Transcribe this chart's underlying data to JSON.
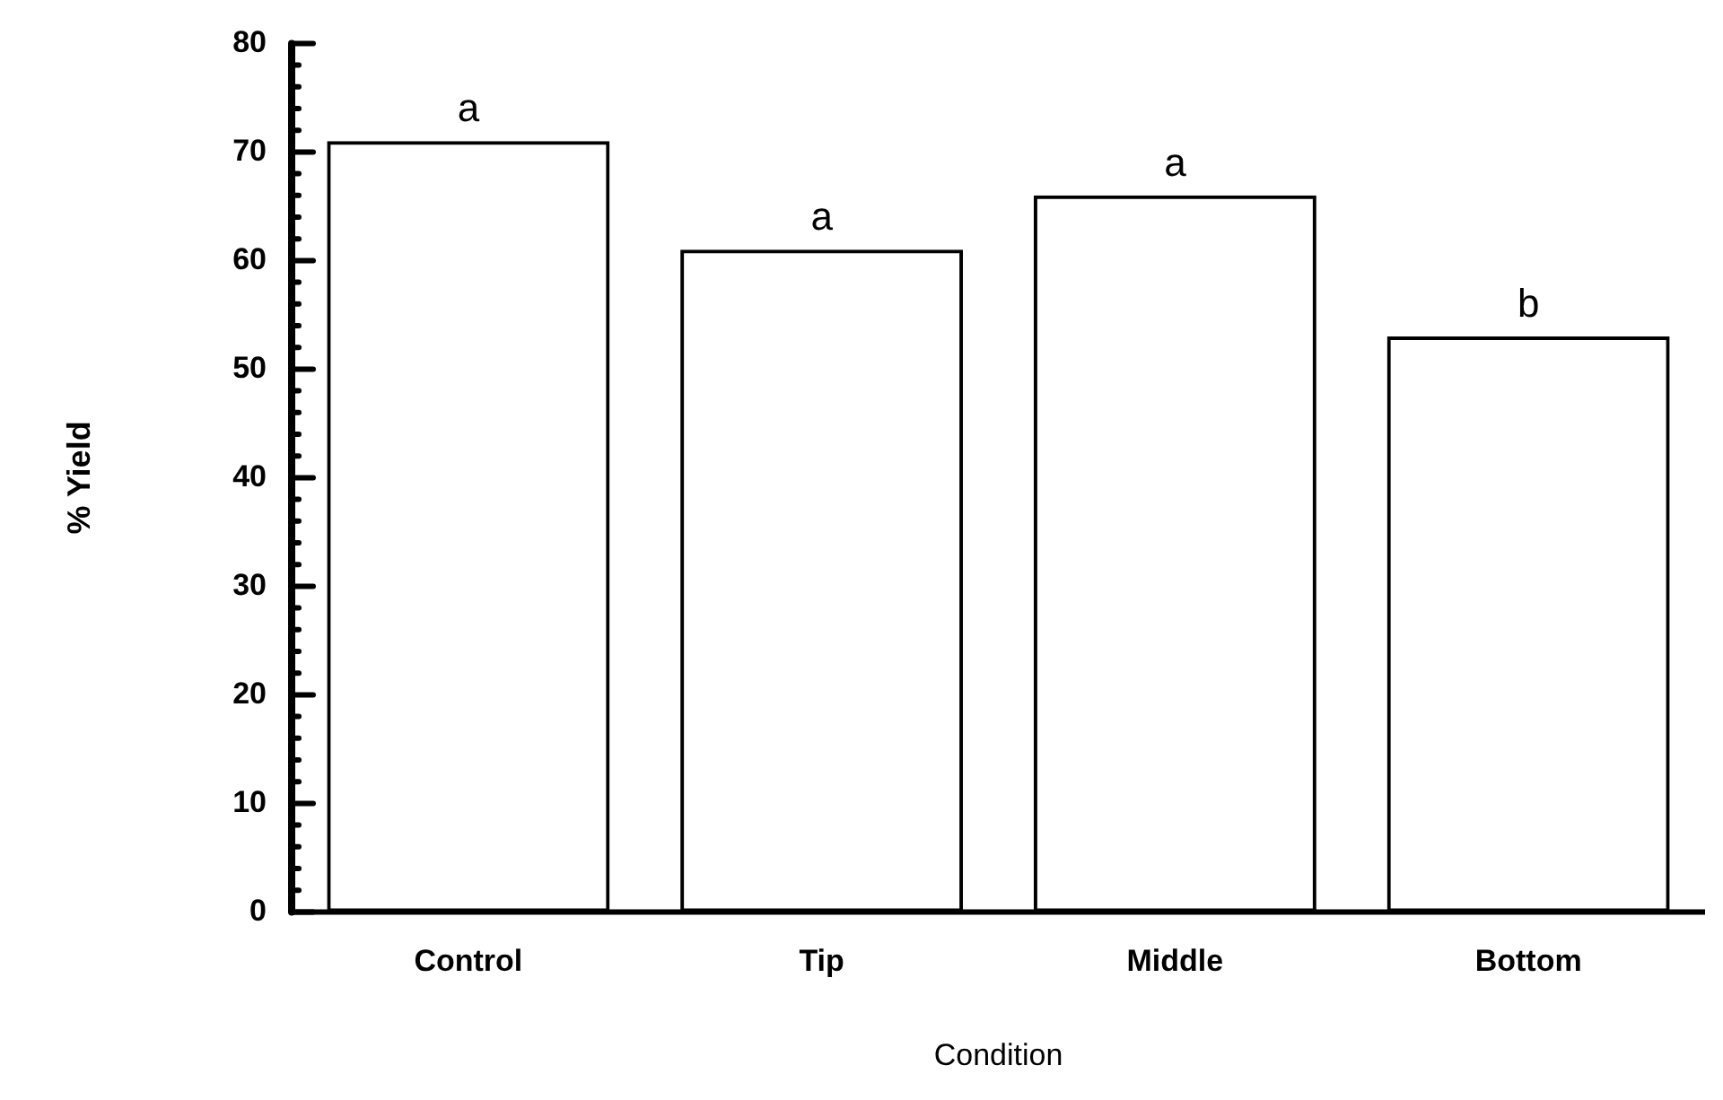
{
  "chart_data": {
    "type": "bar",
    "xlabel": "Condition",
    "ylabel": "% Yield",
    "categories": [
      "Control",
      "Tip",
      "Middle",
      "Bottom"
    ],
    "values": [
      71,
      61,
      66,
      53
    ],
    "color": "#000000",
    "ylim": [
      0,
      80
    ],
    "yticks": [
      0,
      {
        "value": 2,
        "label": null
      },
      {
        "value": 4,
        "label": null
      },
      {
        "value": 6,
        "label": null
      },
      {
        "value": 8,
        "label": null
      },
      10,
      {
        "value": 12,
        "label": null
      },
      {
        "value": 14,
        "label": null
      },
      {
        "value": 16,
        "label": null
      },
      {
        "value": 18,
        "label": null
      },
      20,
      {
        "value": 22,
        "label": null
      },
      {
        "value": 24,
        "label": null
      },
      {
        "value": 26,
        "label": null
      },
      {
        "value": 28,
        "label": null
      },
      30,
      {
        "value": 32,
        "label": null
      },
      {
        "value": 34,
        "label": null
      },
      {
        "value": 36,
        "label": null
      },
      {
        "value": 38,
        "label": null
      },
      40,
      {
        "value": 42,
        "label": null
      },
      {
        "value": 44,
        "label": null
      },
      {
        "value": 46,
        "label": null
      },
      {
        "value": 48,
        "label": null
      },
      50,
      {
        "value": 52,
        "label": null
      },
      {
        "value": 54,
        "label": null
      },
      {
        "value": 56,
        "label": null
      },
      {
        "value": 58,
        "label": null
      },
      60,
      {
        "value": 62,
        "label": null
      },
      {
        "value": 64,
        "label": null
      },
      {
        "value": 66,
        "label": null
      },
      {
        "value": 68,
        "label": null
      },
      70,
      {
        "value": 72,
        "label": null
      },
      {
        "value": 74,
        "label": null
      },
      {
        "value": 76,
        "label": null
      },
      {
        "value": 78,
        "label": null
      },
      80
    ],
    "annotations": [
      {
        "text": "a",
        "x": "Control",
        "y": 71
      },
      {
        "text": "a",
        "x": "Tip",
        "y": 61
      },
      {
        "text": "a",
        "x": "Middle",
        "y": 66
      },
      {
        "text": "b",
        "x": "Bottom",
        "y": 53
      }
    ],
    "grid": false,
    "legend": false
  }
}
